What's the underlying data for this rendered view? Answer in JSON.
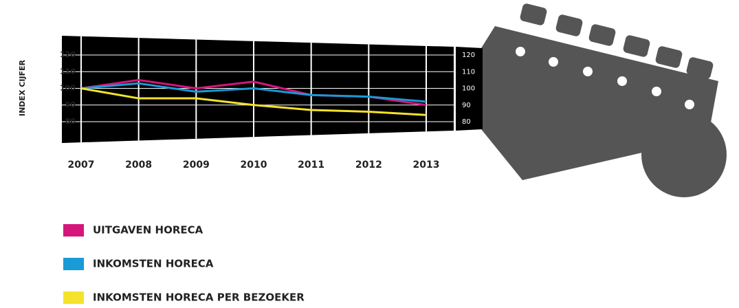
{
  "chart_data": {
    "type": "line",
    "y_label": "INDEX CIJFER",
    "categories": [
      "2007",
      "2008",
      "2009",
      "2010",
      "2011",
      "2012",
      "2013"
    ],
    "series": [
      {
        "name": "UITGAVEN HORECA",
        "color": "#d6157a",
        "values": [
          100,
          105,
          100,
          104,
          96,
          95,
          90
        ]
      },
      {
        "name": "INKOMSTEN HORECA",
        "color": "#1a9ad6",
        "values": [
          100,
          103,
          98,
          100,
          96,
          95,
          92
        ]
      },
      {
        "name": "INKOMSTEN HORECA PER BEZOEKER",
        "color": "#f4e32a",
        "values": [
          100,
          94,
          94,
          90,
          87,
          86,
          84
        ]
      }
    ],
    "ylim": [
      68,
      130
    ],
    "yticks": [
      80,
      90,
      100,
      110,
      120
    ],
    "grid": true
  }
}
